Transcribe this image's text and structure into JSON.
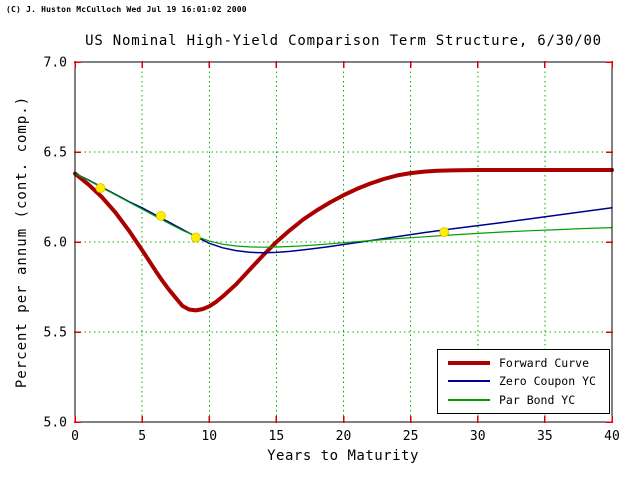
{
  "window": {
    "copyright": "(C) J. Huston McCulloch Wed Jul 19 16:01:02 2000"
  },
  "chart_data": {
    "type": "line",
    "title": "US Nominal High-Yield Comparison Term Structure, 6/30/00",
    "xlabel": "Years to Maturity",
    "ylabel": "Percent per annum (cont. comp.)",
    "xlim": [
      0,
      40
    ],
    "ylim": [
      5.0,
      7.0
    ],
    "xticks": [
      0,
      5,
      10,
      15,
      20,
      25,
      30,
      35,
      40
    ],
    "yticks": [
      5.0,
      5.5,
      6.0,
      6.5,
      7.0
    ],
    "ytick_labels": [
      "5.0",
      "5.5",
      "6.0",
      "6.5",
      "7.0"
    ],
    "grid": true,
    "legend_position": "lower right",
    "colors": {
      "grid": "#00b000",
      "tick": "#dd0000",
      "frame": "#000000",
      "background": "#ffffff",
      "marker": "#ffee00",
      "marker_edge": "#d8c400"
    },
    "series": [
      {
        "name": "Forward Curve",
        "color": "#aa0000",
        "width": 4,
        "x": [
          0,
          1,
          2,
          3,
          4,
          5,
          6,
          6.5,
          7,
          7.5,
          8,
          8.5,
          9,
          9.5,
          10,
          10.5,
          11,
          12,
          13,
          14,
          15,
          16,
          17,
          18,
          19,
          20,
          21,
          22,
          23,
          24,
          25,
          26,
          27,
          28,
          30,
          32,
          35,
          40
        ],
        "y": [
          6.38,
          6.32,
          6.25,
          6.165,
          6.065,
          5.955,
          5.84,
          5.785,
          5.735,
          5.69,
          5.645,
          5.625,
          5.62,
          5.627,
          5.643,
          5.667,
          5.697,
          5.765,
          5.845,
          5.925,
          6.0,
          6.065,
          6.125,
          6.175,
          6.22,
          6.26,
          6.295,
          6.325,
          6.35,
          6.37,
          6.383,
          6.391,
          6.396,
          6.398,
          6.4,
          6.4,
          6.4,
          6.4
        ]
      },
      {
        "name": "Zero Coupon YC",
        "color": "#000090",
        "width": 1.5,
        "x": [
          0,
          1,
          2,
          3,
          4,
          5,
          6,
          7,
          8,
          9,
          10,
          11,
          12,
          13,
          14,
          15,
          16,
          17,
          18,
          19,
          20,
          22,
          24,
          26,
          28,
          30,
          32,
          34,
          36,
          38,
          40
        ],
        "y": [
          6.38,
          6.345,
          6.305,
          6.265,
          6.225,
          6.19,
          6.15,
          6.11,
          6.07,
          6.03,
          5.993,
          5.968,
          5.952,
          5.943,
          5.94,
          5.942,
          5.948,
          5.956,
          5.965,
          5.975,
          5.986,
          6.008,
          6.03,
          6.052,
          6.072,
          6.091,
          6.11,
          6.13,
          6.15,
          6.17,
          6.19
        ]
      },
      {
        "name": "Par Bond YC",
        "color": "#00a000",
        "width": 1.2,
        "x": [
          0,
          1,
          2,
          3,
          4,
          5,
          6,
          7,
          8,
          9,
          10,
          11,
          12,
          13,
          14,
          15,
          16,
          17,
          18,
          19,
          20,
          22,
          24,
          26,
          28,
          30,
          32,
          34,
          36,
          38,
          40
        ],
        "y": [
          6.38,
          6.343,
          6.302,
          6.262,
          6.222,
          6.183,
          6.143,
          6.103,
          6.065,
          6.032,
          6.005,
          5.988,
          5.978,
          5.973,
          5.971,
          5.972,
          5.975,
          5.979,
          5.984,
          5.99,
          5.996,
          6.008,
          6.019,
          6.029,
          6.039,
          6.048,
          6.056,
          6.063,
          6.069,
          6.075,
          6.08
        ]
      }
    ],
    "markers": [
      [
        1.9,
        6.3
      ],
      [
        6.4,
        6.145
      ],
      [
        9.0,
        6.025
      ],
      [
        27.5,
        6.055
      ]
    ]
  }
}
